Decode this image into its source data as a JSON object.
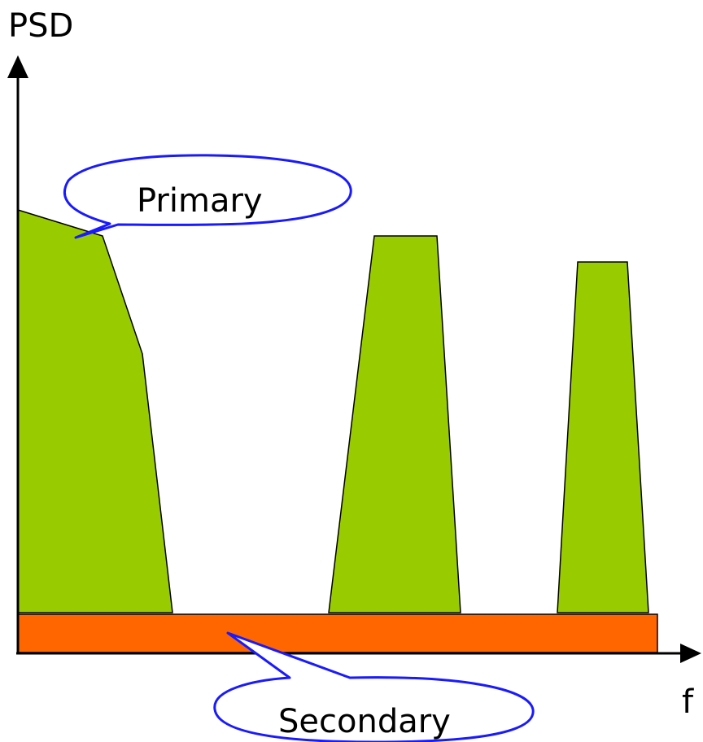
{
  "axes": {
    "y_label": "PSD",
    "x_label": "f"
  },
  "callouts": {
    "primary": "Primary",
    "secondary": "Secondary"
  },
  "colors": {
    "primary_fill": "#99cc00",
    "secondary_fill": "#ff6600",
    "callout_outline": "#1a1aff",
    "axis": "#000000",
    "background": "#ffffff"
  }
}
